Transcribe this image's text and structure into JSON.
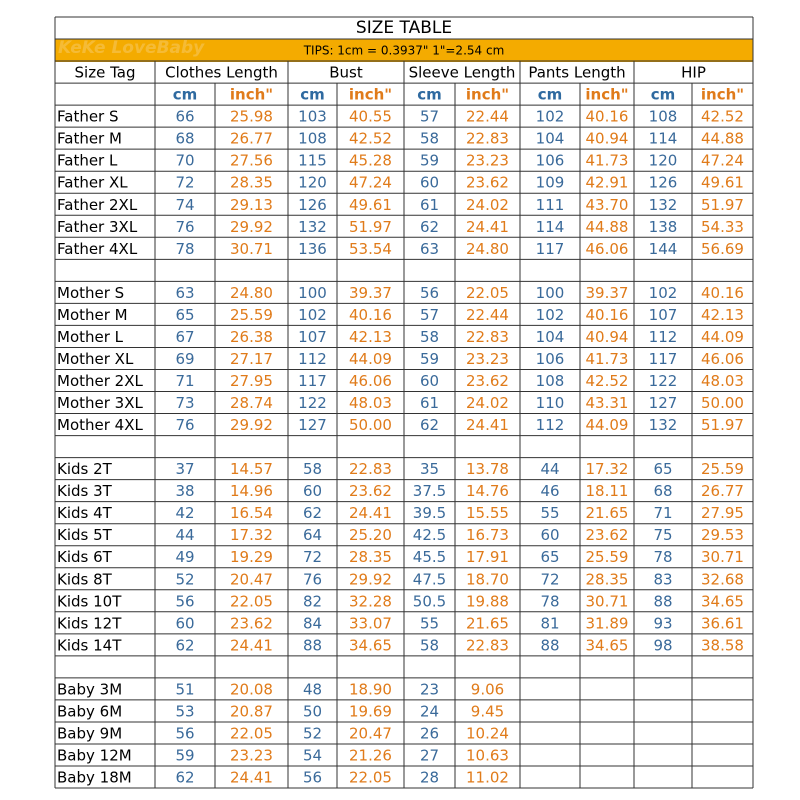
{
  "title": "SIZE TABLE",
  "logo": "KeKe LoveBaby",
  "tips": "TIPS: 1cm = 0.3937\"   1\"=2.54 cm",
  "header": [
    "Size Tag",
    "Clothes Length",
    "Bust",
    "Sleeve Length",
    "Pants Length",
    "HIP"
  ],
  "units": [
    "cm",
    "inch\"",
    "cm",
    "inch\"",
    "cm",
    "inch\"",
    "cm",
    "inch\"",
    "cm",
    "inch\""
  ],
  "groups": [
    [
      [
        "Father S",
        "66",
        "25.98",
        "103",
        "40.55",
        "57",
        "22.44",
        "102",
        "40.16",
        "108",
        "42.52"
      ],
      [
        "Father M",
        "68",
        "26.77",
        "108",
        "42.52",
        "58",
        "22.83",
        "104",
        "40.94",
        "114",
        "44.88"
      ],
      [
        "Father L",
        "70",
        "27.56",
        "115",
        "45.28",
        "59",
        "23.23",
        "106",
        "41.73",
        "120",
        "47.24"
      ],
      [
        "Father XL",
        "72",
        "28.35",
        "120",
        "47.24",
        "60",
        "23.62",
        "109",
        "42.91",
        "126",
        "49.61"
      ],
      [
        "Father 2XL",
        "74",
        "29.13",
        "126",
        "49.61",
        "61",
        "24.02",
        "111",
        "43.70",
        "132",
        "51.97"
      ],
      [
        "Father 3XL",
        "76",
        "29.92",
        "132",
        "51.97",
        "62",
        "24.41",
        "114",
        "44.88",
        "138",
        "54.33"
      ],
      [
        "Father 4XL",
        "78",
        "30.71",
        "136",
        "53.54",
        "63",
        "24.80",
        "117",
        "46.06",
        "144",
        "56.69"
      ]
    ],
    [
      [
        "Mother S",
        "63",
        "24.80",
        "100",
        "39.37",
        "56",
        "22.05",
        "100",
        "39.37",
        "102",
        "40.16"
      ],
      [
        "Mother M",
        "65",
        "25.59",
        "102",
        "40.16",
        "57",
        "22.44",
        "102",
        "40.16",
        "107",
        "42.13"
      ],
      [
        "Mother L",
        "67",
        "26.38",
        "107",
        "42.13",
        "58",
        "22.83",
        "104",
        "40.94",
        "112",
        "44.09"
      ],
      [
        "Mother XL",
        "69",
        "27.17",
        "112",
        "44.09",
        "59",
        "23.23",
        "106",
        "41.73",
        "117",
        "46.06"
      ],
      [
        "Mother 2XL",
        "71",
        "27.95",
        "117",
        "46.06",
        "60",
        "23.62",
        "108",
        "42.52",
        "122",
        "48.03"
      ],
      [
        "Mother 3XL",
        "73",
        "28.74",
        "122",
        "48.03",
        "61",
        "24.02",
        "110",
        "43.31",
        "127",
        "50.00"
      ],
      [
        "Mother 4XL",
        "76",
        "29.92",
        "127",
        "50.00",
        "62",
        "24.41",
        "112",
        "44.09",
        "132",
        "51.97"
      ]
    ],
    [
      [
        "Kids 2T",
        "37",
        "14.57",
        "58",
        "22.83",
        "35",
        "13.78",
        "44",
        "17.32",
        "65",
        "25.59"
      ],
      [
        "Kids 3T",
        "38",
        "14.96",
        "60",
        "23.62",
        "37.5",
        "14.76",
        "46",
        "18.11",
        "68",
        "26.77"
      ],
      [
        "Kids 4T",
        "42",
        "16.54",
        "62",
        "24.41",
        "39.5",
        "15.55",
        "55",
        "21.65",
        "71",
        "27.95"
      ],
      [
        "Kids 5T",
        "44",
        "17.32",
        "64",
        "25.20",
        "42.5",
        "16.73",
        "60",
        "23.62",
        "75",
        "29.53"
      ],
      [
        "Kids 6T",
        "49",
        "19.29",
        "72",
        "28.35",
        "45.5",
        "17.91",
        "65",
        "25.59",
        "78",
        "30.71"
      ],
      [
        "Kids 8T",
        "52",
        "20.47",
        "76",
        "29.92",
        "47.5",
        "18.70",
        "72",
        "28.35",
        "83",
        "32.68"
      ],
      [
        "Kids 10T",
        "56",
        "22.05",
        "82",
        "32.28",
        "50.5",
        "19.88",
        "78",
        "30.71",
        "88",
        "34.65"
      ],
      [
        "Kids 12T",
        "60",
        "23.62",
        "84",
        "33.07",
        "55",
        "21.65",
        "81",
        "31.89",
        "93",
        "36.61"
      ],
      [
        "Kids 14T",
        "62",
        "24.41",
        "88",
        "34.65",
        "58",
        "22.83",
        "88",
        "34.65",
        "98",
        "38.58"
      ]
    ],
    [
      [
        "Baby 3M",
        "51",
        "20.08",
        "48",
        "18.90",
        "23",
        "9.06"
      ],
      [
        "Baby 6M",
        "53",
        "20.87",
        "50",
        "19.69",
        "24",
        "9.45"
      ],
      [
        "Baby 9M",
        "56",
        "22.05",
        "52",
        "20.47",
        "26",
        "10.24"
      ],
      [
        "Baby 12M",
        "59",
        "23.23",
        "54",
        "21.26",
        "27",
        "10.63"
      ],
      [
        "Baby 18M",
        "62",
        "24.41",
        "56",
        "22.05",
        "28",
        "11.02"
      ]
    ]
  ]
}
